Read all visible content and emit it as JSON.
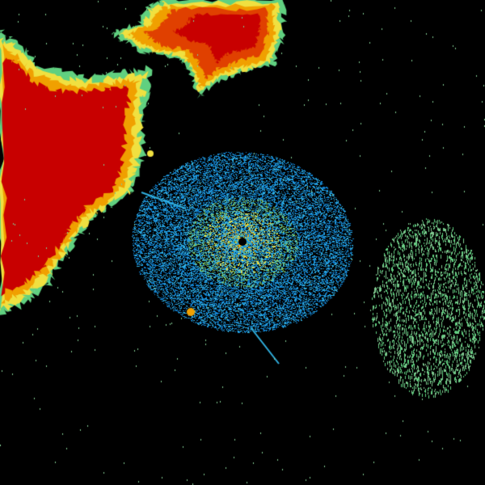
{
  "palette": {
    "background": "#000000",
    "heavy": "#c80000",
    "strong": "#e04000",
    "moderate": "#f0a000",
    "light": "#f0e040",
    "weak_green": "#60d080",
    "clutter_blue": "#1080d0",
    "clutter_cyan": "#30b0e0",
    "sparse_green": "#80c890",
    "site_marker": "#000000"
  }
}
